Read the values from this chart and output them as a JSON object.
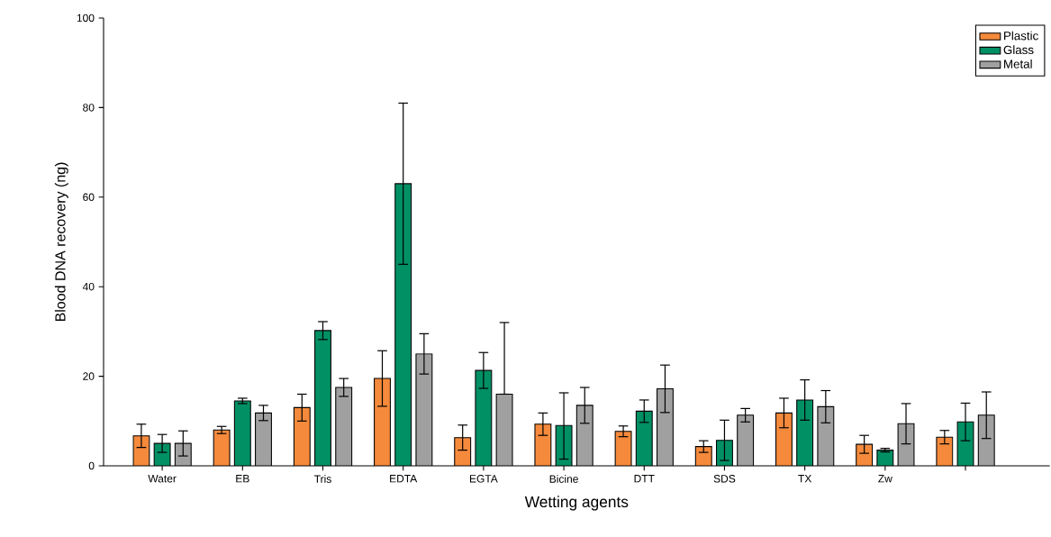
{
  "chart_data": {
    "type": "bar",
    "xlabel": "Wetting agents",
    "ylabel": "Blood DNA recovery (ng)",
    "categories": [
      "Water",
      "EB",
      "Tris",
      "EDTA",
      "EGTA",
      "Bicine",
      "DTT",
      "SDS",
      "TX",
      "Zw",
      null
    ],
    "series": [
      {
        "name": "Plastic",
        "color": "#f58a3c",
        "values": [
          6.7,
          8.0,
          13.0,
          19.5,
          6.3,
          9.3,
          7.7,
          4.3,
          11.8,
          4.8,
          6.4
        ],
        "errors": [
          2.6,
          0.8,
          3.0,
          6.2,
          2.8,
          2.5,
          1.2,
          1.3,
          3.3,
          2.0,
          1.5
        ]
      },
      {
        "name": "Glass",
        "color": "#009064",
        "values": [
          5.0,
          14.5,
          30.2,
          63.0,
          21.3,
          9.0,
          12.2,
          5.7,
          14.7,
          3.5,
          9.8
        ],
        "errors": [
          2.0,
          0.6,
          2.0,
          18.0,
          4.0,
          [
            1.5,
            16.3
          ],
          2.5,
          4.5,
          4.5,
          0.4,
          4.2
        ]
      },
      {
        "name": "Metal",
        "color": "#a0a0a0",
        "values": [
          5.0,
          11.8,
          17.5,
          25.0,
          16.0,
          13.5,
          17.2,
          11.3,
          13.2,
          9.4,
          11.3
        ],
        "errors": [
          2.8,
          1.7,
          2.0,
          4.5,
          [
            16.0,
            32.0
          ],
          4.0,
          5.3,
          1.5,
          3.6,
          4.5,
          5.2
        ]
      }
    ],
    "ylim": [
      0,
      100
    ],
    "yticks": [
      0,
      20,
      40,
      60,
      80,
      100
    ],
    "legend": "top right"
  }
}
